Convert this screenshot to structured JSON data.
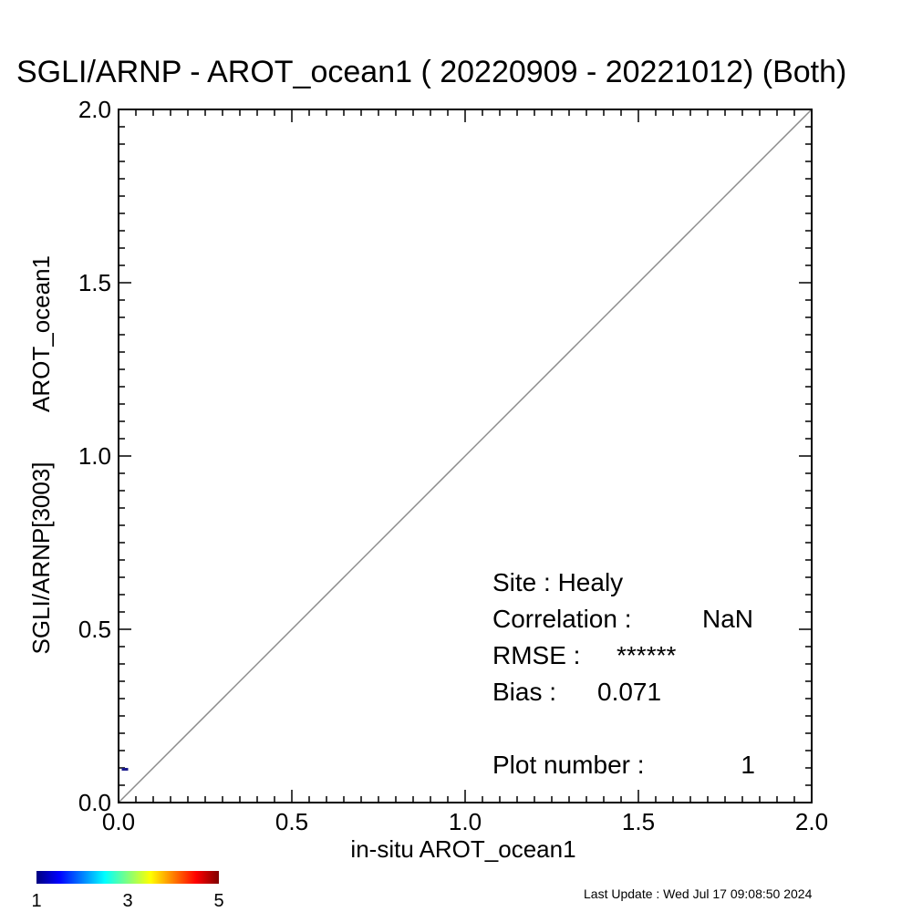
{
  "chart_data": {
    "type": "scatter",
    "title": "SGLI/ARNP - AROT_ocean1 ( 20220909 - 20221012) (Both)",
    "xlabel": "in-situ AROT_ocean1",
    "ylabel_line1": "SGLI/ARNP[3003]",
    "ylabel_line2": "AROT_ocean1",
    "xlim": [
      0.0,
      2.0
    ],
    "ylim": [
      0.0,
      2.0
    ],
    "x_ticks": [
      "0.0",
      "0.5",
      "1.0",
      "1.5",
      "2.0"
    ],
    "y_ticks": [
      "0.0",
      "0.5",
      "1.0",
      "1.5",
      "2.0"
    ],
    "x_tick_values": [
      0.0,
      0.5,
      1.0,
      1.5,
      2.0
    ],
    "y_tick_values": [
      0.0,
      0.5,
      1.0,
      1.5,
      2.0
    ],
    "reference_line": "1:1",
    "points": [
      {
        "x": 0.025,
        "y": 0.096,
        "count": 1
      }
    ],
    "stats": {
      "site_label": "Site : Healy",
      "correlation_label": "Correlation :",
      "correlation_value": "NaN",
      "rmse_label": "RMSE :",
      "rmse_value": "******",
      "bias_label": "Bias :",
      "bias_value": "0.071",
      "plot_number_label": "Plot number :",
      "plot_number_value": "1"
    },
    "colorbar": {
      "min_label": "1",
      "mid_label": "3",
      "max_label": "5",
      "min": 1,
      "max": 5,
      "colors": [
        "#00007f",
        "#0000ff",
        "#007fff",
        "#00ffff",
        "#7fff7f",
        "#ffff00",
        "#ff7f00",
        "#ff0000",
        "#7f0000"
      ]
    },
    "point_color": "#1a1a8c",
    "ref_line_color": "#8c8c8c"
  },
  "footer": {
    "last_update": "Last Update : Wed Jul 17 09:08:50 2024"
  }
}
